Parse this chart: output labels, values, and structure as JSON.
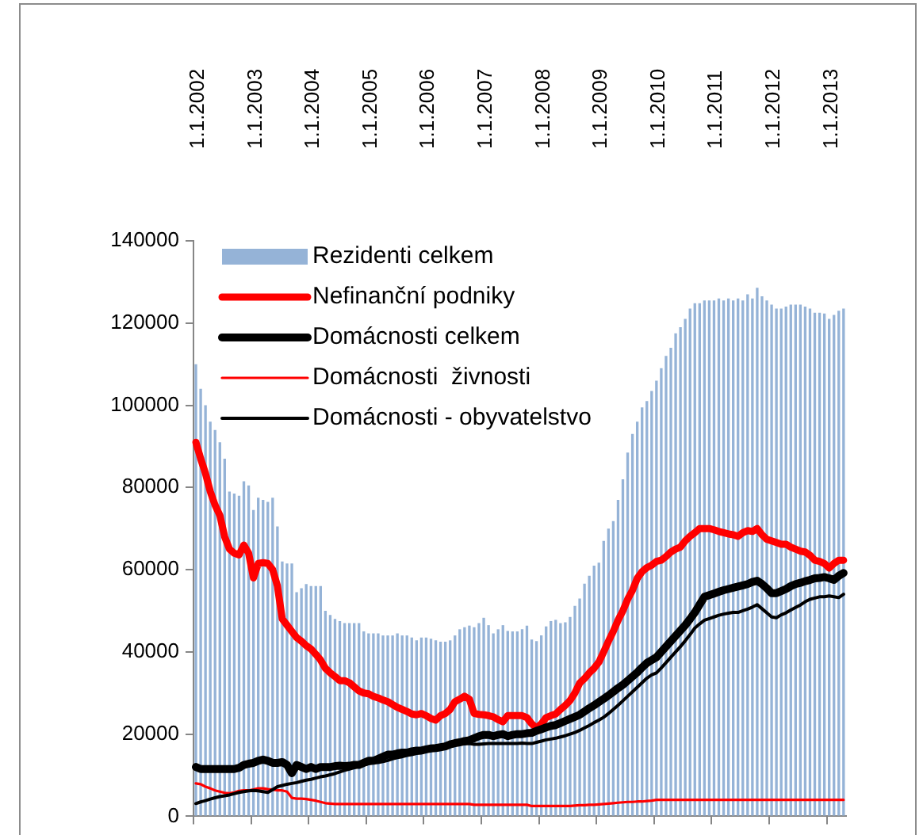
{
  "chart_data": {
    "type": "bar",
    "categories": [
      "1.1.2002",
      null,
      null,
      null,
      null,
      null,
      null,
      null,
      null,
      null,
      null,
      null,
      "1.1.2003",
      null,
      null,
      null,
      null,
      null,
      null,
      null,
      null,
      null,
      null,
      null,
      "1.1.2004",
      null,
      null,
      null,
      null,
      null,
      null,
      null,
      null,
      null,
      null,
      null,
      "1.1.2005",
      null,
      null,
      null,
      null,
      null,
      null,
      null,
      null,
      null,
      null,
      null,
      "1.1.2006",
      null,
      null,
      null,
      null,
      null,
      null,
      null,
      null,
      null,
      null,
      null,
      "1.1.2007",
      null,
      null,
      null,
      null,
      null,
      null,
      null,
      null,
      null,
      null,
      null,
      "1.1.2008",
      null,
      null,
      null,
      null,
      null,
      null,
      null,
      null,
      null,
      null,
      null,
      "1.1.2009",
      null,
      null,
      null,
      null,
      null,
      null,
      null,
      null,
      null,
      null,
      null,
      "1.1.2010",
      null,
      null,
      null,
      null,
      null,
      null,
      null,
      null,
      null,
      null,
      null,
      "1.1.2011",
      null,
      null,
      null,
      null,
      null,
      null,
      null,
      null,
      null,
      null,
      null,
      "1.1.2012",
      null,
      null,
      null,
      null,
      null,
      null,
      null,
      null,
      null,
      null,
      null,
      "1.1.2013",
      null,
      null,
      null
    ],
    "series": [
      {
        "name": "Rezidenti celkem",
        "color": "#95b3d7",
        "values": [
          110000,
          104000,
          100000,
          96000,
          94000,
          91000,
          87000,
          79000,
          78500,
          78000,
          81500,
          80500,
          74500,
          77500,
          77000,
          76500,
          77500,
          70500,
          62000,
          61500,
          61500,
          54500,
          55500,
          56500,
          56000,
          56000,
          56000,
          50000,
          49000,
          48000,
          47500,
          47000,
          47000,
          47000,
          47000,
          45000,
          44500,
          44500,
          44500,
          44000,
          44000,
          44000,
          44500,
          44000,
          44000,
          43500,
          42800,
          43500,
          43500,
          43200,
          42800,
          42500,
          42500,
          42800,
          44000,
          45500,
          46000,
          46400,
          46000,
          47000,
          48300,
          46500,
          44500,
          45500,
          46500,
          45100,
          45000,
          45000,
          45500,
          46400,
          43000,
          42600,
          44000,
          46200,
          47500,
          47800,
          47000,
          47200,
          48500,
          51200,
          53000,
          56600,
          58500,
          61000,
          61700,
          67000,
          70000,
          71800,
          77000,
          82000,
          88500,
          93000,
          96000,
          99500,
          101000,
          103500,
          106000,
          109000,
          112000,
          114000,
          117500,
          119000,
          121000,
          123500,
          124800,
          124800,
          125500,
          125500,
          125500,
          126000,
          125500,
          126000,
          125500,
          126000,
          125500,
          127000,
          126000,
          128600,
          126500,
          125500,
          124500,
          123500,
          123500,
          124000,
          124500,
          124500,
          124500,
          124000,
          123500,
          122500,
          122500,
          122300,
          121000,
          122000,
          123000,
          123500
        ]
      },
      {
        "name": "Nefinanční podniky",
        "type": "line",
        "color": "#ff0000",
        "values": [
          91000,
          87000,
          83400,
          79000,
          75700,
          73200,
          68000,
          65000,
          64000,
          63600,
          66000,
          64000,
          58000,
          61500,
          61700,
          61500,
          60000,
          56000,
          48000,
          46500,
          45000,
          43500,
          42600,
          41500,
          40700,
          39400,
          38000,
          36000,
          34900,
          34000,
          33000,
          33000,
          32500,
          31500,
          30500,
          30000,
          29800,
          29200,
          28800,
          28300,
          27900,
          27200,
          26500,
          26000,
          25500,
          24900,
          24700,
          25000,
          24500,
          23800,
          23400,
          24500,
          25000,
          26000,
          27900,
          28500,
          29200,
          28500,
          25000,
          24800,
          24700,
          24500,
          24200,
          23500,
          23000,
          24500,
          24500,
          24500,
          24500,
          24000,
          22500,
          21500,
          22500,
          24000,
          24500,
          24900,
          26000,
          27000,
          28200,
          30000,
          32400,
          33500,
          34900,
          36000,
          37500,
          40000,
          42600,
          45000,
          47700,
          50000,
          52800,
          55000,
          57900,
          59500,
          60500,
          61100,
          62000,
          62300,
          63200,
          64300,
          65000,
          65500,
          67000,
          68100,
          69000,
          70000,
          70000,
          70000,
          69700,
          69300,
          69000,
          68700,
          68500,
          68100,
          69000,
          69500,
          69300,
          70000,
          68500,
          67400,
          67000,
          66600,
          66200,
          66200,
          65500,
          65000,
          64500,
          64300,
          63500,
          62300,
          62000,
          61500,
          60400,
          61500,
          62300,
          62300
        ]
      },
      {
        "name": "Domácnosti celkem",
        "type": "line",
        "color": "#000000",
        "values": [
          12000,
          11500,
          11500,
          11500,
          11500,
          11500,
          11500,
          11500,
          11500,
          11800,
          12500,
          12800,
          13000,
          13500,
          13800,
          13500,
          13000,
          13000,
          13200,
          12500,
          10500,
          12500,
          12000,
          11500,
          12000,
          11500,
          12000,
          12000,
          12000,
          12200,
          12300,
          12200,
          12300,
          12500,
          12500,
          13000,
          13500,
          13500,
          14000,
          14500,
          15000,
          15000,
          15300,
          15500,
          15500,
          15800,
          16000,
          16000,
          16300,
          16500,
          16600,
          16800,
          17000,
          17500,
          17800,
          18000,
          18300,
          18500,
          19000,
          19500,
          19800,
          19800,
          19500,
          19800,
          20000,
          19500,
          19800,
          20000,
          20000,
          20200,
          20300,
          20800,
          21200,
          21600,
          22000,
          22200,
          22700,
          23200,
          23700,
          24200,
          24700,
          25500,
          26300,
          27000,
          27800,
          28600,
          29400,
          30300,
          31200,
          32000,
          33000,
          34000,
          35000,
          36200,
          37300,
          38000,
          38700,
          40000,
          41300,
          42600,
          43900,
          45200,
          46500,
          48000,
          49600,
          51500,
          53400,
          53800,
          54200,
          54600,
          55000,
          55300,
          55600,
          55900,
          56200,
          56500,
          57000,
          57300,
          56500,
          55500,
          54300,
          54300,
          54800,
          55300,
          56000,
          56500,
          56800,
          57200,
          57500,
          57900,
          58000,
          58200,
          57900,
          57500,
          58500,
          59200
        ]
      },
      {
        "name": "Domácnosti  živnosti",
        "type": "line",
        "color": "#ff0000",
        "values": [
          8000,
          7800,
          7200,
          6800,
          6300,
          6000,
          5700,
          5600,
          5800,
          6200,
          6300,
          6300,
          6500,
          6800,
          6800,
          6600,
          6500,
          6300,
          6300,
          6000,
          4500,
          4300,
          4300,
          4200,
          4000,
          3800,
          3500,
          3200,
          3100,
          3000,
          3000,
          3000,
          3000,
          3000,
          3000,
          3000,
          3000,
          3000,
          3000,
          3000,
          3000,
          3000,
          3000,
          3000,
          3000,
          3000,
          3000,
          3000,
          3000,
          3000,
          3000,
          3000,
          3000,
          3000,
          3000,
          3000,
          3000,
          3000,
          2800,
          2800,
          2800,
          2800,
          2800,
          2800,
          2800,
          2800,
          2800,
          2800,
          2800,
          2800,
          2500,
          2500,
          2500,
          2500,
          2500,
          2500,
          2500,
          2500,
          2500,
          2600,
          2700,
          2700,
          2800,
          2800,
          2900,
          3000,
          3100,
          3200,
          3300,
          3400,
          3500,
          3500,
          3600,
          3600,
          3700,
          3800,
          4000,
          4000,
          4000,
          4000,
          4000,
          4000,
          4000,
          4000,
          4000,
          4000,
          4000,
          4000,
          4000,
          4000,
          4000,
          4000,
          4000,
          4000,
          4000,
          4000,
          4000,
          4000,
          4000,
          4000,
          4000,
          4000,
          4000,
          4000,
          4000,
          4000,
          4000,
          4000,
          4000,
          4000,
          4000,
          4000,
          4000,
          4000,
          4000,
          4000
        ]
      },
      {
        "name": "Domácnosti - obyvatelstvo",
        "type": "line",
        "color": "#000000",
        "values": [
          3100,
          3500,
          3800,
          4200,
          4500,
          4800,
          5000,
          5200,
          5500,
          5800,
          6000,
          6200,
          6300,
          6200,
          6000,
          5800,
          6500,
          7200,
          7500,
          7800,
          8000,
          8200,
          8500,
          8800,
          9000,
          9300,
          9600,
          9800,
          10100,
          10400,
          10800,
          11200,
          11500,
          11800,
          12200,
          12500,
          12800,
          13000,
          13100,
          13300,
          13600,
          14000,
          14300,
          14500,
          14800,
          15000,
          15300,
          15500,
          15800,
          16000,
          16300,
          16600,
          16800,
          17100,
          17300,
          17500,
          17600,
          17700,
          17500,
          17500,
          17600,
          17700,
          17700,
          17700,
          17700,
          17700,
          17700,
          17700,
          17800,
          17700,
          17700,
          18000,
          18300,
          18600,
          18800,
          19000,
          19300,
          19600,
          20000,
          20400,
          20900,
          21500,
          22100,
          22800,
          23400,
          24100,
          25000,
          26000,
          27000,
          28100,
          29200,
          30300,
          31400,
          32500,
          33600,
          34400,
          34900,
          36100,
          37400,
          38700,
          40000,
          41300,
          42700,
          44200,
          45800,
          46800,
          47700,
          48100,
          48500,
          48900,
          49200,
          49400,
          49600,
          49600,
          50000,
          50400,
          50900,
          51500,
          50500,
          49500,
          48500,
          48300,
          49000,
          49500,
          50200,
          50800,
          51400,
          52200,
          52800,
          53100,
          53400,
          53400,
          53600,
          53400,
          53200,
          54000
        ]
      }
    ],
    "ylim": [
      0,
      140000
    ],
    "yticks": [
      0,
      20000,
      40000,
      60000,
      80000,
      100000,
      120000,
      140000
    ],
    "legend": "top left",
    "marker": "none"
  }
}
